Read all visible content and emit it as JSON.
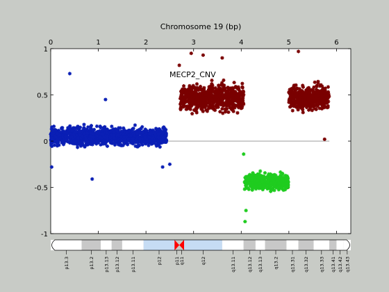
{
  "chart_data": {
    "type": "scatter",
    "title": "Chromosome 19 (bp)",
    "xlabel": "",
    "ylabel": "",
    "x_ticks": [
      "0",
      "1",
      "2",
      "3",
      "4",
      "5",
      "6"
    ],
    "y_ticks": [
      "1",
      "0.5",
      "0",
      "-0.5",
      "-1"
    ],
    "xlim": [
      0,
      6.3
    ],
    "ylim": [
      -1,
      1
    ],
    "x_axis_position": "top",
    "grid": false,
    "annotation": "MECP2_CNV",
    "baseline": {
      "y": 0,
      "x_range": [
        0,
        5.85
      ],
      "color": "#7a7a7a"
    },
    "series": [
      {
        "color": "#0a1fb5",
        "segments": [
          {
            "x_range": [
              0,
              2.43
            ],
            "mean": 0.05,
            "spread": 0.16
          }
        ],
        "outliers": [
          [
            0.4,
            0.73
          ],
          [
            0.87,
            -0.41
          ],
          [
            1.15,
            0.45
          ],
          [
            2.35,
            -0.28
          ],
          [
            0.02,
            -0.28
          ],
          [
            2.5,
            -0.25
          ]
        ]
      },
      {
        "color": "#7a0000",
        "segments": [
          {
            "x_range": [
              2.72,
              4.05
            ],
            "mean": 0.47,
            "spread": 0.24
          },
          {
            "x_range": [
              5.0,
              5.85
            ],
            "mean": 0.47,
            "spread": 0.22
          }
        ],
        "outliers": [
          [
            2.7,
            0.82
          ],
          [
            3.2,
            0.93
          ],
          [
            2.95,
            0.95
          ],
          [
            5.2,
            0.97
          ],
          [
            3.6,
            0.9
          ],
          [
            5.75,
            0.02
          ],
          [
            4.98,
            -0.5
          ]
        ]
      },
      {
        "color": "#1fcc1f",
        "segments": [
          {
            "x_range": [
              4.07,
              4.99
            ],
            "mean": -0.44,
            "spread": 0.14
          }
        ],
        "outliers": [
          [
            4.08,
            -0.87
          ],
          [
            4.05,
            -0.14
          ],
          [
            4.1,
            -0.75
          ]
        ]
      }
    ],
    "ideogram": {
      "centromere_x": 2.7,
      "bands": [
        {
          "name": "p13.3",
          "x0": 0.0,
          "x1": 0.65,
          "stain": "white"
        },
        {
          "name": "p13.2",
          "x0": 0.65,
          "x1": 1.05,
          "stain": "gray"
        },
        {
          "name": "p13.13",
          "x0": 1.05,
          "x1": 1.28,
          "stain": "white"
        },
        {
          "name": "p13.12",
          "x0": 1.28,
          "x1": 1.5,
          "stain": "gray"
        },
        {
          "name": "p13.11",
          "x0": 1.5,
          "x1": 1.95,
          "stain": "white"
        },
        {
          "name": "p12",
          "x0": 1.95,
          "x1": 2.6,
          "stain": "blue"
        },
        {
          "name": "p11",
          "x0": 2.6,
          "x1": 2.7,
          "stain": "red"
        },
        {
          "name": "q11",
          "x0": 2.7,
          "x1": 2.8,
          "stain": "red"
        },
        {
          "name": "q12",
          "x0": 2.8,
          "x1": 3.6,
          "stain": "blue"
        },
        {
          "name": "q13.11",
          "x0": 3.6,
          "x1": 4.05,
          "stain": "white"
        },
        {
          "name": "q13.12",
          "x0": 4.05,
          "x1": 4.3,
          "stain": "gray"
        },
        {
          "name": "q13.13",
          "x0": 4.3,
          "x1": 4.5,
          "stain": "white"
        },
        {
          "name": "q13.2",
          "x0": 4.5,
          "x1": 4.95,
          "stain": "gray"
        },
        {
          "name": "q13.31",
          "x0": 4.95,
          "x1": 5.2,
          "stain": "white"
        },
        {
          "name": "q13.32",
          "x0": 5.2,
          "x1": 5.52,
          "stain": "gray"
        },
        {
          "name": "q13.33",
          "x0": 5.52,
          "x1": 5.85,
          "stain": "white"
        },
        {
          "name": "q13.41",
          "x0": 5.85,
          "x1": 6.0,
          "stain": "gray"
        },
        {
          "name": "q13.42",
          "x0": 6.0,
          "x1": 6.15,
          "stain": "white"
        },
        {
          "name": "q13.43",
          "x0": 6.15,
          "x1": 6.3,
          "stain": "white"
        }
      ],
      "stain_colors": {
        "white": "#ffffff",
        "gray": "#c8c8c8",
        "blue": "#c6dcf4",
        "red": "#ff0000"
      }
    }
  }
}
